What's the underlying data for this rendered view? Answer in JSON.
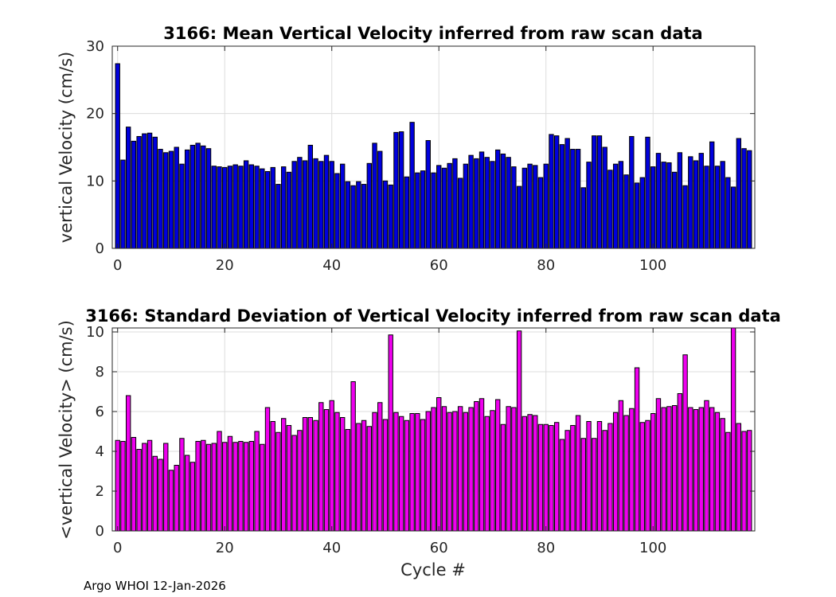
{
  "footer": "Argo WHOI 12-Jan-2026",
  "chart_data": [
    {
      "type": "bar",
      "title": "3166: Mean Vertical Velocity inferred from raw scan data",
      "xlabel": "",
      "ylabel": "vertical Velocity (cm/s)",
      "xlim": [
        -1,
        119
      ],
      "ylim": [
        0,
        30
      ],
      "xticks": [
        0,
        20,
        40,
        60,
        80,
        100
      ],
      "yticks": [
        0,
        10,
        20,
        30
      ],
      "grid": true,
      "bar_color": "#0000dd",
      "x_start": 0,
      "values": [
        27.4,
        13.1,
        18.0,
        15.9,
        16.6,
        17.0,
        17.1,
        16.5,
        14.7,
        14.2,
        14.4,
        15.0,
        12.5,
        14.6,
        15.3,
        15.6,
        15.2,
        14.8,
        12.2,
        12.1,
        12.0,
        12.2,
        12.4,
        12.2,
        13.0,
        12.4,
        12.2,
        11.8,
        11.4,
        12.0,
        9.5,
        12.1,
        11.3,
        12.9,
        13.5,
        13.0,
        15.3,
        13.3,
        12.9,
        13.8,
        12.9,
        11.1,
        12.5,
        9.9,
        9.3,
        9.9,
        9.5,
        12.6,
        15.6,
        14.4,
        10.0,
        9.4,
        17.2,
        17.3,
        10.6,
        18.7,
        11.2,
        11.5,
        16.0,
        11.2,
        12.3,
        11.9,
        12.6,
        13.3,
        10.4,
        12.5,
        13.8,
        13.3,
        14.3,
        13.5,
        12.9,
        14.6,
        14.0,
        13.5,
        12.1,
        9.2,
        11.9,
        12.5,
        12.3,
        10.5,
        12.5,
        16.9,
        16.7,
        15.4,
        16.3,
        14.7,
        14.7,
        9.0,
        12.8,
        16.7,
        16.7,
        15.0,
        11.6,
        12.5,
        12.9,
        10.9,
        16.6,
        9.7,
        10.5,
        16.5,
        12.1,
        14.1,
        12.8,
        12.7,
        11.3,
        14.2,
        9.3,
        13.6,
        13.0,
        14.1,
        12.2,
        15.8,
        12.2,
        12.9,
        10.5,
        9.1,
        16.3,
        14.8,
        14.5
      ]
    },
    {
      "type": "bar",
      "title": "3166: Standard Deviation of Vertical Velocity inferred from raw scan data",
      "xlabel": "Cycle #",
      "ylabel": "<vertical Velocity> (cm/s)",
      "xlim": [
        -1,
        119
      ],
      "ylim": [
        0,
        10.2
      ],
      "xticks": [
        0,
        20,
        40,
        60,
        80,
        100
      ],
      "yticks": [
        0,
        2,
        4,
        6,
        8,
        10
      ],
      "grid": true,
      "bar_color": "#ee00ee",
      "x_start": 0,
      "values": [
        4.55,
        4.5,
        6.8,
        4.7,
        4.1,
        4.4,
        4.55,
        3.75,
        3.6,
        4.4,
        3.05,
        3.3,
        4.65,
        3.8,
        3.45,
        4.5,
        4.55,
        4.35,
        4.4,
        5.0,
        4.45,
        4.75,
        4.45,
        4.5,
        4.45,
        4.5,
        5.0,
        4.35,
        6.2,
        5.5,
        4.95,
        5.65,
        5.3,
        4.8,
        5.05,
        5.7,
        5.7,
        5.55,
        6.45,
        6.1,
        6.55,
        5.95,
        5.7,
        5.1,
        7.5,
        5.4,
        5.55,
        5.25,
        5.95,
        6.45,
        5.6,
        9.85,
        5.95,
        5.75,
        5.55,
        5.9,
        5.9,
        5.6,
        6.0,
        6.2,
        6.7,
        6.25,
        5.95,
        6.0,
        6.25,
        5.95,
        6.2,
        6.5,
        6.65,
        5.75,
        6.05,
        6.6,
        5.35,
        6.25,
        6.2,
        10.05,
        5.75,
        5.85,
        5.8,
        5.35,
        5.35,
        5.3,
        5.45,
        4.6,
        5.05,
        5.3,
        5.8,
        4.65,
        5.5,
        4.65,
        5.5,
        5.05,
        5.4,
        5.95,
        6.55,
        5.8,
        6.15,
        8.2,
        5.45,
        5.55,
        5.9,
        6.65,
        6.2,
        6.25,
        6.3,
        6.9,
        8.85,
        6.2,
        6.1,
        6.2,
        6.55,
        6.2,
        5.95,
        5.65,
        4.95,
        10.2,
        5.4,
        5.0,
        5.05
      ]
    }
  ]
}
